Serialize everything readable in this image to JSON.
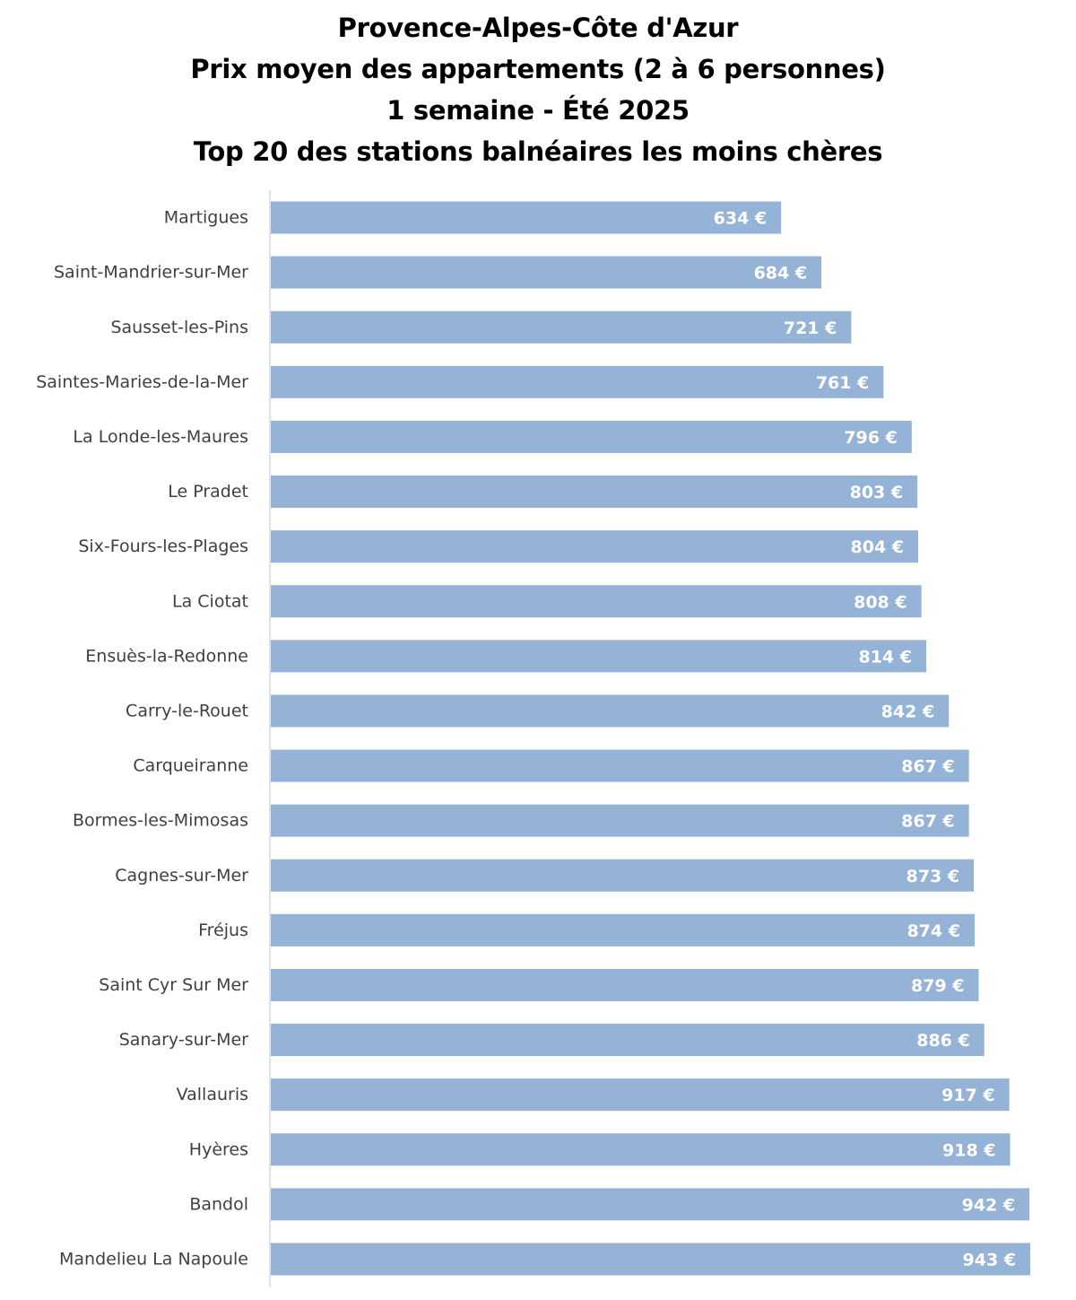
{
  "chart_data": {
    "type": "bar",
    "orientation": "horizontal",
    "title": [
      "Provence-Alpes-Côte d'Azur",
      "Prix moyen des appartements (2 à 6 personnes)",
      "1 semaine - Été 2025",
      "Top 20 des stations balnéaires les moins chères"
    ],
    "categories": [
      "Martigues",
      "Saint-Mandrier-sur-Mer",
      "Sausset-les-Pins",
      "Saintes-Maries-de-la-Mer",
      "La Londe-les-Maures",
      "Le Pradet",
      "Six-Fours-les-Plages",
      "La Ciotat",
      "Ensuès-la-Redonne",
      "Carry-le-Rouet",
      "Carqueiranne",
      "Bormes-les-Mimosas",
      "Cagnes-sur-Mer",
      "Fréjus",
      "Saint Cyr Sur Mer",
      "Sanary-sur-Mer",
      "Vallauris",
      "Hyères",
      "Bandol",
      "Mandelieu La Napoule"
    ],
    "values": [
      634,
      684,
      721,
      761,
      796,
      803,
      804,
      808,
      814,
      842,
      867,
      867,
      873,
      874,
      879,
      886,
      917,
      918,
      942,
      943
    ],
    "value_labels": [
      "634 €",
      "684 €",
      "721 €",
      "761 €",
      "796 €",
      "803 €",
      "804 €",
      "808 €",
      "814 €",
      "842 €",
      "867 €",
      "867 €",
      "873 €",
      "874 €",
      "879 €",
      "886 €",
      "917 €",
      "918 €",
      "942 €",
      "943 €"
    ],
    "unit": "€",
    "xlim": [
      0,
      943
    ],
    "grid": false,
    "legend": "none",
    "bar_color": "#95B3D7",
    "axis_color": "#D9D9D9"
  }
}
